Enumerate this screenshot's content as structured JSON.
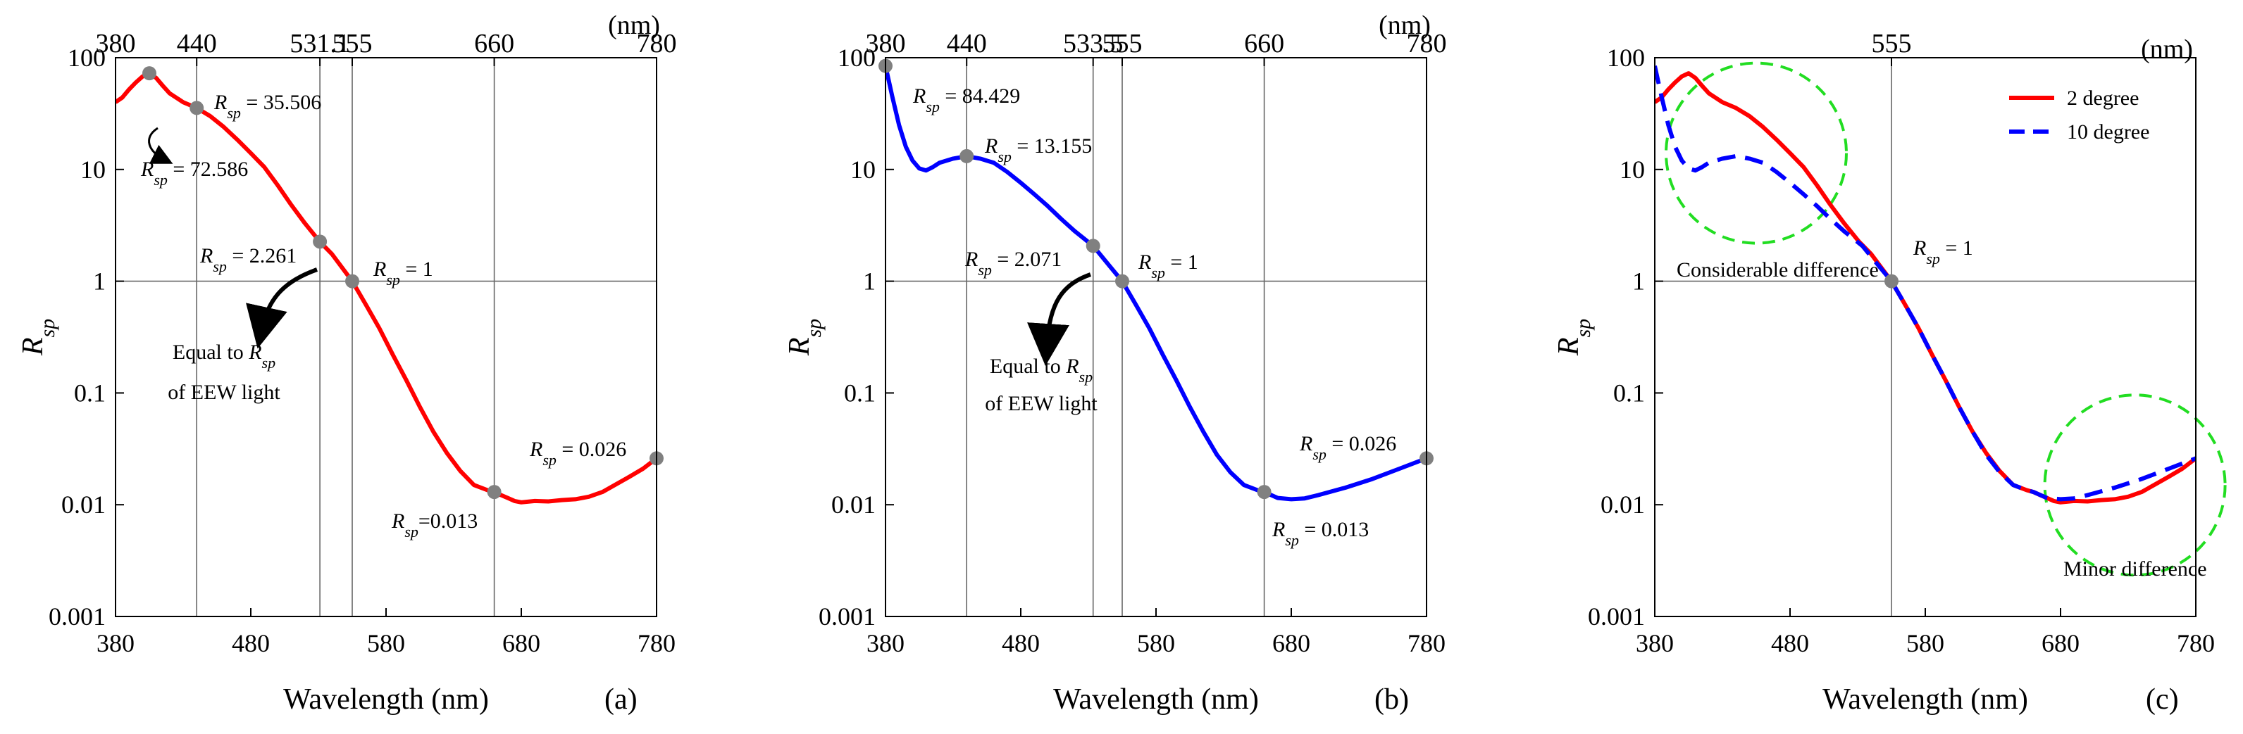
{
  "chart_data": [
    {
      "type": "line",
      "panel_label": "(a)",
      "xlabel": "Wavelength (nm)",
      "ylabel_main": "R",
      "ylabel_sub": "sp",
      "xlim": [
        380,
        780
      ],
      "ylim": [
        0.001,
        100
      ],
      "yscale": "log",
      "x_ticks": [
        "380",
        "480",
        "580",
        "680",
        "780"
      ],
      "y_ticks": [
        "0.001",
        "0.01",
        "0.1",
        "1",
        "10",
        "100"
      ],
      "top_unit": "(nm)",
      "top_ticks": [
        {
          "value": 380,
          "label": "380"
        },
        {
          "value": 440,
          "label": "440"
        },
        {
          "value": 531.1,
          "label": "531.1"
        },
        {
          "value": 555,
          "label": "555"
        },
        {
          "value": 660,
          "label": "660"
        },
        {
          "value": 780,
          "label": "780"
        }
      ],
      "vlines": [
        440,
        531.1,
        555,
        660
      ],
      "hline": 1,
      "series": [
        {
          "name": "2 degree",
          "color": "#ff0000",
          "dash": "solid",
          "x": [
            380,
            385,
            390,
            395,
            400,
            405,
            410,
            415,
            420,
            430,
            440,
            450,
            460,
            470,
            480,
            490,
            500,
            510,
            520,
            531,
            540,
            555,
            565,
            575,
            585,
            595,
            605,
            615,
            625,
            635,
            645,
            655,
            660,
            665,
            670,
            675,
            680,
            690,
            700,
            710,
            720,
            730,
            740,
            750,
            760,
            770,
            780
          ],
          "y": [
            40,
            44,
            52,
            60,
            68,
            72.6,
            66,
            56,
            48,
            40,
            35.5,
            30,
            24,
            18.5,
            14,
            10.5,
            7.2,
            4.8,
            3.3,
            2.26,
            1.75,
            1,
            0.62,
            0.38,
            0.22,
            0.13,
            0.075,
            0.045,
            0.029,
            0.02,
            0.015,
            0.0135,
            0.013,
            0.0122,
            0.0115,
            0.0108,
            0.0105,
            0.0108,
            0.0107,
            0.011,
            0.0112,
            0.0118,
            0.013,
            0.0152,
            0.0178,
            0.021,
            0.026
          ]
        }
      ],
      "markers": [
        {
          "x": 405,
          "y": 72.586
        },
        {
          "x": 440,
          "y": 35.506
        },
        {
          "x": 531.1,
          "y": 2.261
        },
        {
          "x": 555,
          "y": 1
        },
        {
          "x": 660,
          "y": 0.013
        },
        {
          "x": 780,
          "y": 0.026
        }
      ],
      "annotations": [
        {
          "main": "R",
          "sub": "sp",
          "rest": " = 35.506"
        },
        {
          "main": "R",
          "sub": "sp",
          "rest": " = 72.586"
        },
        {
          "main": "R",
          "sub": "sp",
          "rest": " = 2.261"
        },
        {
          "main": "R",
          "sub": "sp",
          "rest": " = 1"
        },
        {
          "main": "R",
          "sub": "sp",
          "rest": " = 0.026"
        },
        {
          "main": "R",
          "sub": "sp",
          "rest": "=0.013"
        }
      ],
      "note": {
        "line1_text": "Equal to ",
        "line1_main": "R",
        "line1_sub": "sp",
        "line2": "of EEW light"
      }
    },
    {
      "type": "line",
      "panel_label": "(b)",
      "xlabel": "Wavelength (nm)",
      "ylabel_main": "R",
      "ylabel_sub": "sp",
      "xlim": [
        380,
        780
      ],
      "ylim": [
        0.001,
        100
      ],
      "yscale": "log",
      "x_ticks": [
        "380",
        "480",
        "580",
        "680",
        "780"
      ],
      "y_ticks": [
        "0.001",
        "0.01",
        "0.1",
        "1",
        "10",
        "100"
      ],
      "top_unit": "(nm)",
      "top_ticks": [
        {
          "value": 380,
          "label": "380"
        },
        {
          "value": 440,
          "label": "440"
        },
        {
          "value": 533.5,
          "label": "533.5"
        },
        {
          "value": 555,
          "label": "555"
        },
        {
          "value": 660,
          "label": "660"
        },
        {
          "value": 780,
          "label": "780"
        }
      ],
      "vlines": [
        440,
        533.5,
        555,
        660
      ],
      "hline": 1,
      "series": [
        {
          "name": "10 degree",
          "color": "#0000ff",
          "dash": "solid",
          "x": [
            380,
            385,
            390,
            395,
            400,
            405,
            410,
            415,
            420,
            430,
            440,
            450,
            460,
            470,
            480,
            490,
            500,
            510,
            520,
            533.5,
            545,
            555,
            565,
            575,
            585,
            595,
            605,
            615,
            625,
            635,
            645,
            655,
            660,
            670,
            680,
            690,
            700,
            720,
            740,
            760,
            780
          ],
          "y": [
            84.4,
            45,
            25,
            16,
            12,
            10.2,
            9.8,
            10.5,
            11.5,
            12.5,
            13.155,
            12.5,
            11.5,
            9.5,
            7.6,
            6,
            4.7,
            3.6,
            2.8,
            2.071,
            1.4,
            1,
            0.62,
            0.38,
            0.22,
            0.13,
            0.075,
            0.045,
            0.028,
            0.0195,
            0.015,
            0.0135,
            0.013,
            0.0115,
            0.0112,
            0.0114,
            0.0122,
            0.0142,
            0.017,
            0.021,
            0.026
          ]
        }
      ],
      "markers": [
        {
          "x": 380,
          "y": 84.429
        },
        {
          "x": 440,
          "y": 13.155
        },
        {
          "x": 533.5,
          "y": 2.071
        },
        {
          "x": 555,
          "y": 1
        },
        {
          "x": 660,
          "y": 0.013
        },
        {
          "x": 780,
          "y": 0.026
        }
      ],
      "annotations": [
        {
          "main": "R",
          "sub": "sp",
          "rest": " = 84.429"
        },
        {
          "main": "R",
          "sub": "sp",
          "rest": " = 13.155"
        },
        {
          "main": "R",
          "sub": "sp",
          "rest": " = 2.071"
        },
        {
          "main": "R",
          "sub": "sp",
          "rest": " = 1"
        },
        {
          "main": "R",
          "sub": "sp",
          "rest": " = 0.026"
        },
        {
          "main": "R",
          "sub": "sp",
          "rest": " = 0.013"
        }
      ],
      "note": {
        "line1_text": "Equal to ",
        "line1_main": "R",
        "line1_sub": "sp",
        "line2": "of EEW light"
      }
    },
    {
      "type": "line",
      "panel_label": "(c)",
      "xlabel": "Wavelength (nm)",
      "ylabel_main": "R",
      "ylabel_sub": "sp",
      "xlim": [
        380,
        780
      ],
      "ylim": [
        0.001,
        100
      ],
      "yscale": "log",
      "x_ticks": [
        "380",
        "480",
        "580",
        "680",
        "780"
      ],
      "y_ticks": [
        "0.001",
        "0.01",
        "0.1",
        "1",
        "10",
        "100"
      ],
      "top_unit": "(nm)",
      "top_ticks": [
        {
          "value": 555,
          "label": "555"
        }
      ],
      "vlines": [
        555
      ],
      "hline": 1,
      "legend": {
        "position": "top-right",
        "entries": [
          "2 degree",
          "10 degree"
        ]
      },
      "series": [
        {
          "name": "2 degree",
          "color": "#ff0000",
          "dash": "solid",
          "x": [
            380,
            385,
            390,
            395,
            400,
            405,
            410,
            415,
            420,
            430,
            440,
            450,
            460,
            470,
            480,
            490,
            500,
            510,
            520,
            531,
            540,
            555,
            565,
            575,
            585,
            595,
            605,
            615,
            625,
            635,
            645,
            655,
            660,
            665,
            670,
            675,
            680,
            690,
            700,
            710,
            720,
            730,
            740,
            750,
            760,
            770,
            780
          ],
          "y": [
            40,
            44,
            52,
            60,
            68,
            72.6,
            66,
            56,
            48,
            40,
            35.5,
            30,
            24,
            18.5,
            14,
            10.5,
            7.2,
            4.8,
            3.3,
            2.26,
            1.75,
            1,
            0.62,
            0.38,
            0.22,
            0.13,
            0.075,
            0.045,
            0.029,
            0.02,
            0.015,
            0.0135,
            0.013,
            0.0122,
            0.0115,
            0.0108,
            0.0105,
            0.0108,
            0.0107,
            0.011,
            0.0112,
            0.0118,
            0.013,
            0.0152,
            0.0178,
            0.021,
            0.026
          ]
        },
        {
          "name": "10 degree",
          "color": "#0000ff",
          "dash": "dashed",
          "x": [
            380,
            385,
            390,
            395,
            400,
            405,
            410,
            415,
            420,
            430,
            440,
            450,
            460,
            470,
            480,
            490,
            500,
            510,
            520,
            533.5,
            545,
            555,
            565,
            575,
            585,
            595,
            605,
            615,
            625,
            635,
            645,
            655,
            660,
            670,
            680,
            690,
            700,
            720,
            740,
            760,
            780
          ],
          "y": [
            84.4,
            45,
            25,
            16,
            12,
            10.2,
            9.8,
            10.5,
            11.5,
            12.5,
            13.155,
            12.5,
            11.5,
            9.5,
            7.6,
            6,
            4.7,
            3.6,
            2.8,
            2.071,
            1.4,
            1,
            0.62,
            0.38,
            0.22,
            0.13,
            0.075,
            0.045,
            0.028,
            0.0195,
            0.015,
            0.0135,
            0.013,
            0.0115,
            0.0112,
            0.0114,
            0.0122,
            0.0142,
            0.017,
            0.021,
            0.026
          ]
        }
      ],
      "markers": [
        {
          "x": 555,
          "y": 1
        }
      ],
      "annotations": [
        {
          "main": "R",
          "sub": "sp",
          "rest": " = 1"
        }
      ],
      "circles": [
        {
          "cx": 455,
          "cy": 14,
          "label": "Considerable difference"
        },
        {
          "cx": 735,
          "cy": 0.015,
          "label": "Minor difference"
        }
      ]
    }
  ]
}
